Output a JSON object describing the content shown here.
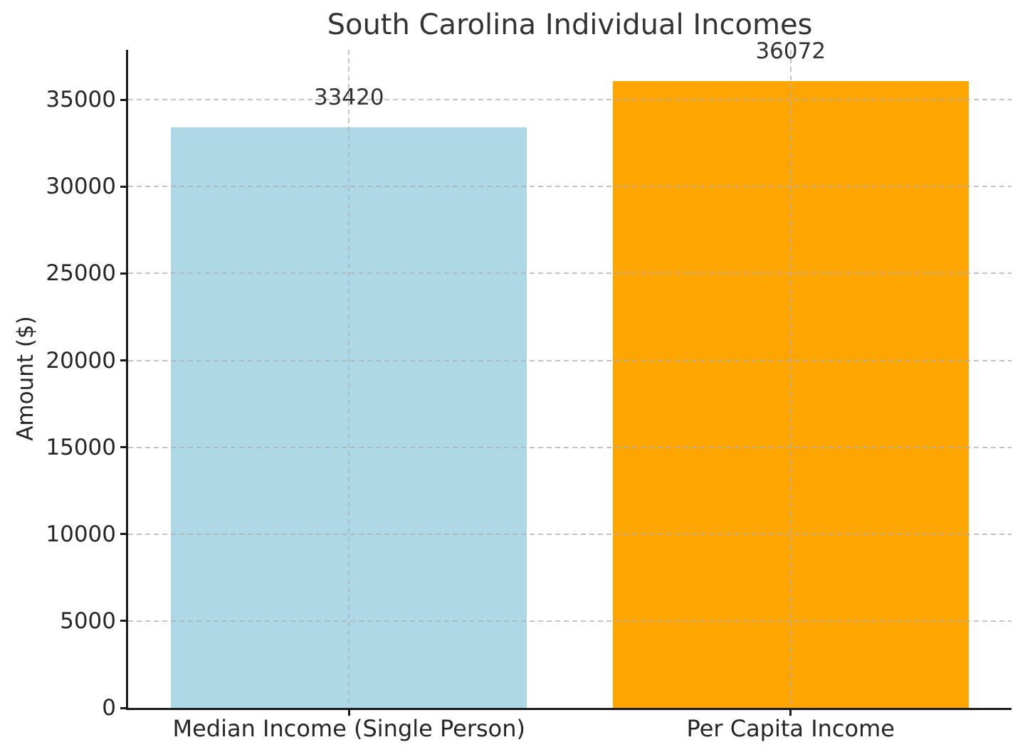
{
  "title": "South Carolina Individual Incomes",
  "chart_data": {
    "type": "bar",
    "title": "South Carolina Individual Incomes",
    "categories": [
      "Median Income (Single Person)",
      "Per Capita Income"
    ],
    "values": [
      33420,
      36072
    ],
    "value_labels": [
      "33420",
      "36072"
    ],
    "bar_colors": [
      "#ADD8E6",
      "#FFA500"
    ],
    "xlabel": "",
    "ylabel": "Amount ($)",
    "ylim": [
      0,
      37876
    ],
    "yticks": [
      0,
      5000,
      10000,
      15000,
      20000,
      25000,
      30000,
      35000
    ],
    "grid": "dashed, gray, horizontal and vertical, drawn over bars",
    "legend_position": "none",
    "grid_color": "#b0b0b0",
    "spine_color": "#1a1a1a",
    "text_color": "#262626",
    "background_color": "#ffffff"
  }
}
